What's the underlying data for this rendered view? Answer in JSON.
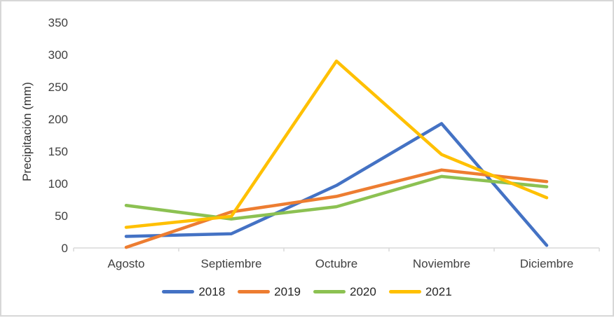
{
  "chart_data": {
    "type": "line",
    "title": "",
    "categories": [
      "Agosto",
      "Septiembre",
      "Octubre",
      "Noviembre",
      "Diciembre"
    ],
    "series": [
      {
        "name": "2018",
        "color": "#4472C4",
        "values": [
          18,
          22,
          97,
          193,
          4
        ]
      },
      {
        "name": "2019",
        "color": "#ED7D31",
        "values": [
          1,
          56,
          80,
          121,
          103
        ]
      },
      {
        "name": "2020",
        "color": "#8CC152",
        "values": [
          66,
          45,
          64,
          111,
          95
        ]
      },
      {
        "name": "2021",
        "color": "#FFC000",
        "values": [
          32,
          49,
          290,
          145,
          78
        ]
      }
    ],
    "xlabel": "",
    "ylabel": "Precipitación (mm)",
    "ylim": [
      0,
      350
    ],
    "ytick_step": 50,
    "grid": false,
    "legend_position": "bottom",
    "axis_color": "#D9D9D9",
    "tick_text_color": "#404040",
    "axis_title_color": "#333333"
  }
}
